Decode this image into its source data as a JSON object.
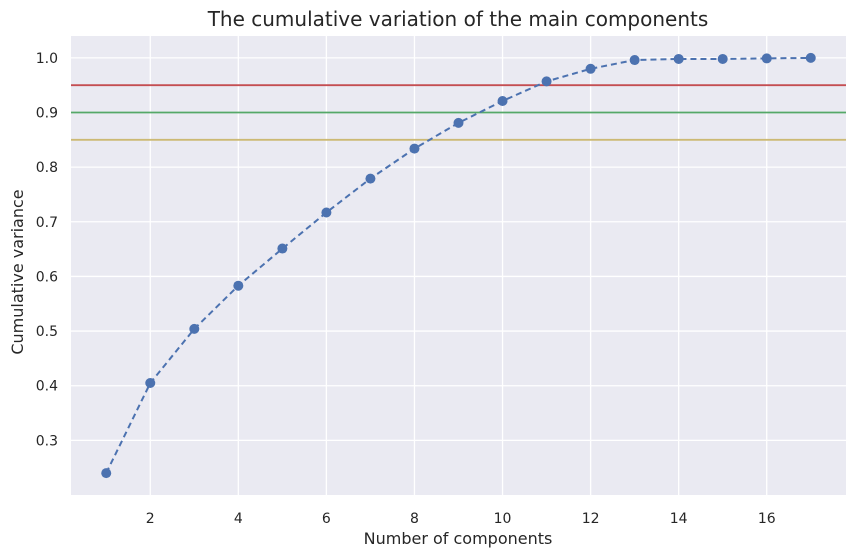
{
  "chart_data": {
    "type": "line",
    "title": "The cumulative variation of the main components",
    "xlabel": "Number of components",
    "ylabel": "Cumulative variance",
    "xlim": [
      0.2,
      17.8
    ],
    "ylim": [
      0.2,
      1.04
    ],
    "xticks": [
      2,
      4,
      6,
      8,
      10,
      12,
      14,
      16
    ],
    "yticks": [
      0.3,
      0.4,
      0.5,
      0.6,
      0.7,
      0.8,
      0.9,
      1.0
    ],
    "grid": true,
    "series": [
      {
        "x": [
          1,
          2,
          3,
          4,
          5,
          6,
          7,
          8,
          9,
          10,
          11,
          12,
          13,
          14,
          15,
          16,
          17
        ],
        "values": [
          0.24,
          0.405,
          0.504,
          0.583,
          0.651,
          0.717,
          0.779,
          0.834,
          0.881,
          0.921,
          0.957,
          0.98,
          0.996,
          0.998,
          0.998,
          0.999,
          1.0
        ],
        "style": "dashed line with circle markers",
        "color": "#4c72b0"
      }
    ],
    "reference_lines": [
      {
        "y": 0.95,
        "color": "#c44e52"
      },
      {
        "y": 0.9,
        "color": "#55a868"
      },
      {
        "y": 0.85,
        "color": "#ccb974"
      }
    ],
    "colors": {
      "background": "#eaeaf2",
      "grid": "#ffffff"
    }
  }
}
